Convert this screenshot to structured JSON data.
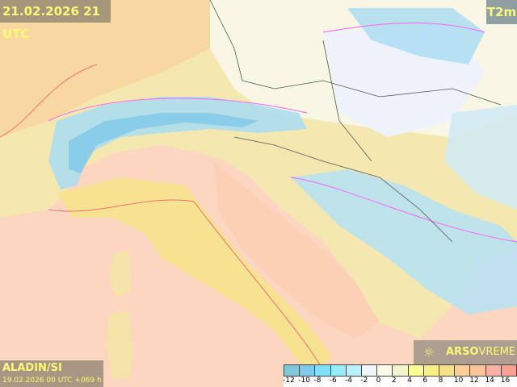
{
  "header": {
    "valid_time": "21.02.2026 21 UTC",
    "parameter": "T2m"
  },
  "footer": {
    "model": "ALADIN/SI",
    "run": "19.02.2026 00 UTC +069 h"
  },
  "logo": {
    "brand_bold": "ARSO",
    "brand_light": "VREME",
    "icon": "sun-icon"
  },
  "legend": {
    "labels": [
      "-12",
      "-10",
      "-8",
      "-6",
      "-4",
      "-2",
      "0",
      "2",
      "4",
      "6",
      "8",
      "10",
      "12",
      "14",
      "16"
    ],
    "colors": [
      "#7fc6de",
      "#7fcbee",
      "#80e0f8",
      "#98ecfc",
      "#b8f2fc",
      "#eef6fc",
      "#fafae8",
      "#f4f4cc",
      "#fcfc98",
      "#f8f080",
      "#f8e088",
      "#fcd096",
      "#fcc49c",
      "#fcb0a0",
      "#fca090"
    ]
  },
  "colors": {
    "sea": "#fcd6c0",
    "label_text": "#fafa78"
  }
}
